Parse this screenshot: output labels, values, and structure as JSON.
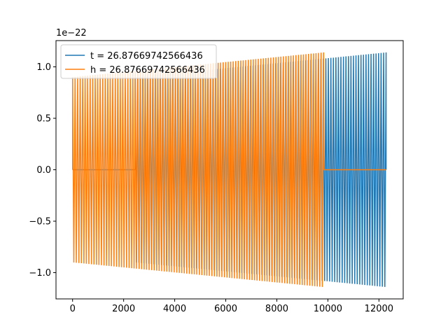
{
  "chart_data": {
    "type": "line",
    "title": "",
    "xlabel": "",
    "ylabel": "",
    "offset_text": "1e−22",
    "xlim": [
      -650,
      12950
    ],
    "ylim": [
      -1.255,
      1.255
    ],
    "xticks": [
      0,
      2000,
      4000,
      6000,
      8000,
      10000,
      12000
    ],
    "xtick_labels": [
      "0",
      "2000",
      "4000",
      "6000",
      "8000",
      "10000",
      "12000"
    ],
    "yticks": [
      -1.0,
      -0.5,
      0.0,
      0.5,
      1.0
    ],
    "ytick_labels": [
      "−1.0",
      "−0.5",
      "0.0",
      "0.5",
      "1.0"
    ],
    "grid": false,
    "legend_position": "upper-left",
    "series": [
      {
        "name": "t = 26.87669742566436",
        "color": "#1f77b4",
        "segments": [
          {
            "kind": "flat",
            "x_start": 0,
            "x_end": 2450,
            "value": 0.0
          },
          {
            "kind": "oscillation",
            "x_start": 2450,
            "x_end": 12280,
            "amp_start": 0.9,
            "amp_end": 1.14,
            "cycles": 100
          }
        ]
      },
      {
        "name": "h = 26.87669742566436",
        "color": "#ff7f0e",
        "segments": [
          {
            "kind": "oscillation",
            "x_start": 0,
            "x_end": 9830,
            "amp_start": 0.9,
            "amp_end": 1.14,
            "cycles": 100
          },
          {
            "kind": "flat",
            "x_start": 9830,
            "x_end": 12280,
            "value": 0.0
          }
        ]
      }
    ]
  }
}
